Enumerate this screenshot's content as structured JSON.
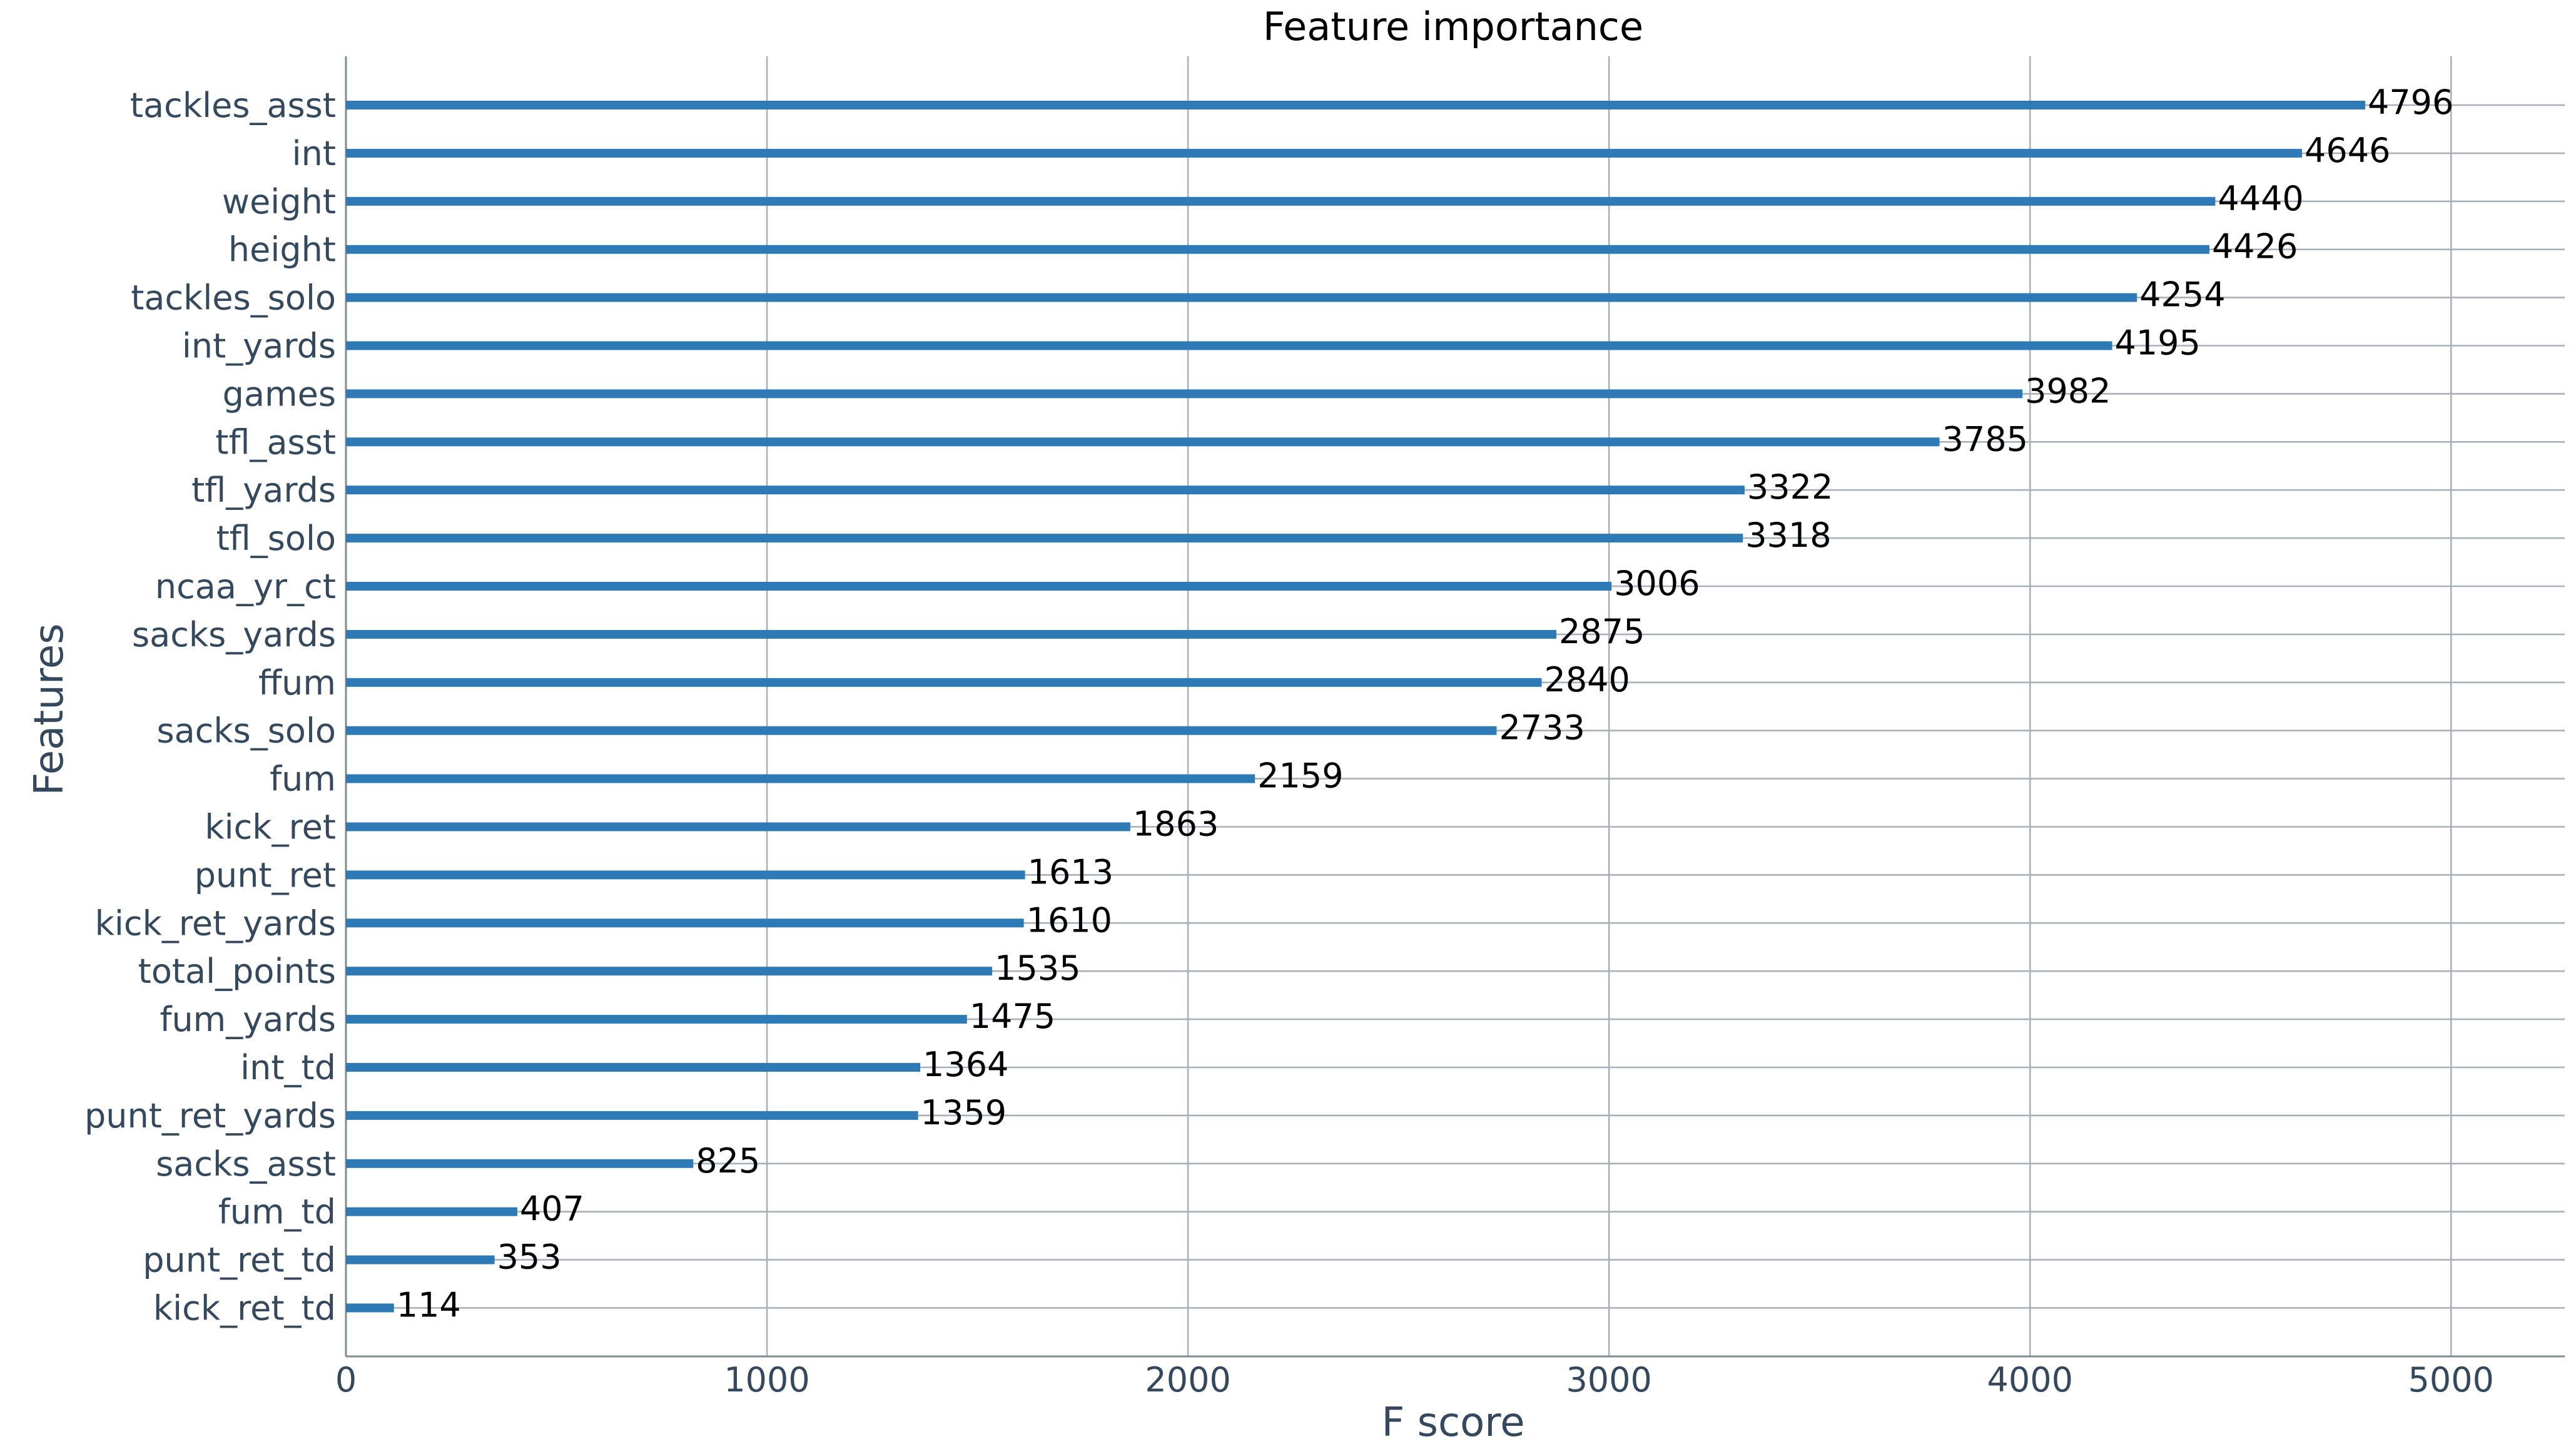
{
  "chart_data": {
    "type": "bar",
    "orientation": "horizontal",
    "title": "Feature importance",
    "xlabel": "F score",
    "ylabel": "Features",
    "xlim": [
      0,
      5270
    ],
    "xticks": [
      0,
      1000,
      2000,
      3000,
      4000,
      5000
    ],
    "xtick_labels": [
      "0",
      "1000",
      "2000",
      "3000",
      "4000",
      "5000"
    ],
    "grid": true,
    "bar_color": "#2e7ab6",
    "categories": [
      "tackles_asst",
      "int",
      "weight",
      "height",
      "tackles_solo",
      "int_yards",
      "games",
      "tfl_asst",
      "tfl_yards",
      "tfl_solo",
      "ncaa_yr_ct",
      "sacks_yards",
      "ffum",
      "sacks_solo",
      "fum",
      "kick_ret",
      "punt_ret",
      "kick_ret_yards",
      "total_points",
      "fum_yards",
      "int_td",
      "punt_ret_yards",
      "sacks_asst",
      "fum_td",
      "punt_ret_td",
      "kick_ret_td"
    ],
    "values": [
      4796,
      4646,
      4440,
      4426,
      4254,
      4195,
      3982,
      3785,
      3322,
      3318,
      3006,
      2875,
      2840,
      2733,
      2159,
      1863,
      1613,
      1610,
      1535,
      1475,
      1364,
      1359,
      825,
      407,
      353,
      114
    ]
  }
}
